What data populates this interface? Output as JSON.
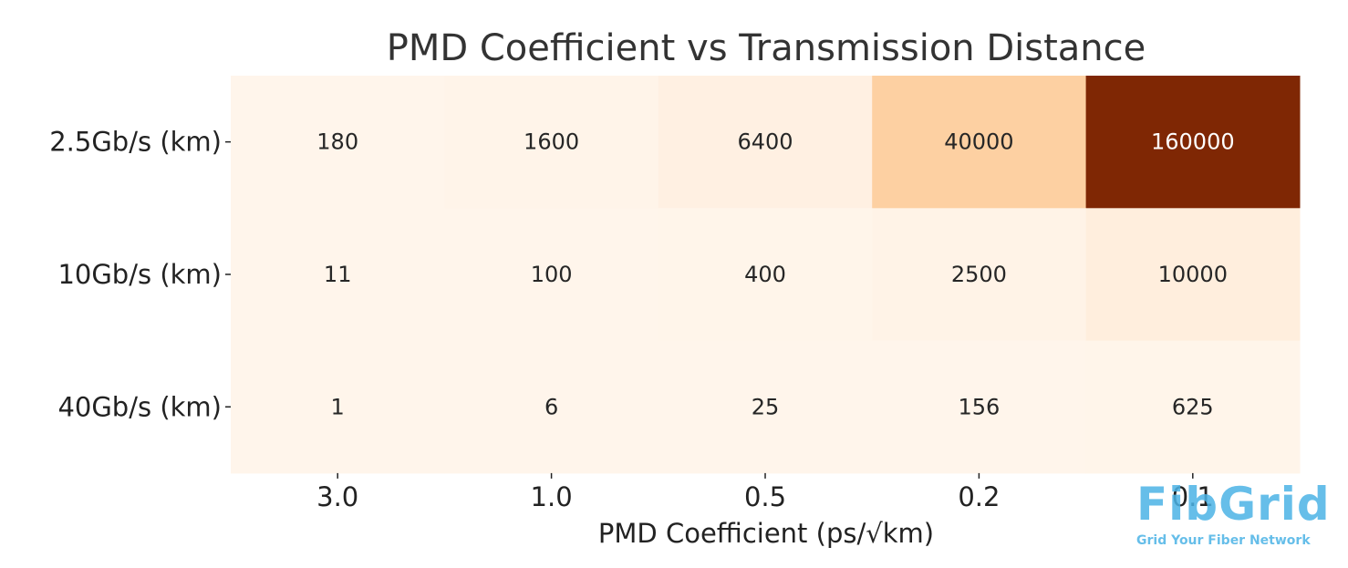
{
  "chart_data": {
    "type": "heatmap",
    "title": "PMD Coefficient vs Transmission Distance",
    "xlabel": "PMD Coefficient (ps/√km)",
    "ylabel": "",
    "x_categories": [
      "3.0",
      "1.0",
      "0.5",
      "0.2",
      "0.1"
    ],
    "y_categories": [
      "2.5Gb/s (km)",
      "10Gb/s (km)",
      "40Gb/s (km)"
    ],
    "values": [
      [
        180,
        1600,
        6400,
        40000,
        160000
      ],
      [
        11,
        100,
        400,
        2500,
        10000
      ],
      [
        1,
        6,
        25,
        156,
        625
      ]
    ],
    "colormap": "Oranges",
    "color_low": "#fff5eb",
    "color_high": "#7f2704",
    "annotations": true
  },
  "watermark": {
    "brand": "FibGrid",
    "tagline": "Grid Your Fiber Network",
    "color": "#4cb3e6"
  }
}
